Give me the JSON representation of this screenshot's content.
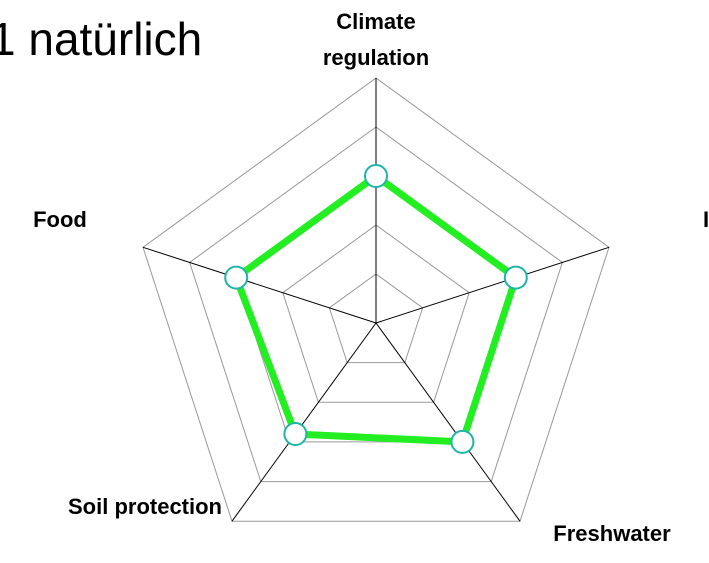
{
  "chart_data": {
    "type": "radar",
    "title": "1 natürlich",
    "categories": [
      "Climate regulation",
      "I",
      "Freshwater",
      "Soil protection",
      "Food"
    ],
    "values": [
      3,
      3,
      3,
      2.8,
      3
    ],
    "color": "#22ee22",
    "marker_color": "#1fb5a5",
    "ylim": [
      0,
      5
    ],
    "yticks": [
      1,
      2,
      3,
      4,
      5
    ],
    "grid": true
  }
}
